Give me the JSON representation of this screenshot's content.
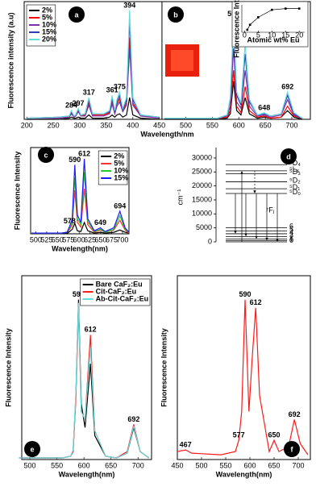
{
  "chart_data": [
    {
      "type": "line",
      "panel_labels": [
        "a",
        "b"
      ],
      "xlabel": "Wavelength/nm",
      "ylabel": "Fluorescence intensity (a.u)",
      "legend": "upper left",
      "x": [
        200,
        260,
        280,
        284,
        289,
        292,
        297,
        302,
        310,
        317,
        324,
        345,
        356,
        361,
        366,
        370,
        375,
        381,
        388,
        394,
        400,
        415,
        450,
        455,
        460,
        560,
        578,
        584,
        590,
        596,
        604,
        612,
        620,
        635,
        648,
        660,
        680,
        692,
        704,
        720
      ],
      "series": [
        {
          "name": "2%",
          "color": "#000000",
          "values": [
            0,
            0,
            1,
            2,
            1,
            1,
            2,
            1,
            1,
            4,
            1,
            1,
            2,
            4,
            2,
            4,
            5,
            2,
            4,
            20,
            4,
            1,
            0,
            null,
            0,
            0,
            1,
            5,
            35,
            8,
            4,
            20,
            5,
            1,
            2,
            1,
            2,
            8,
            2,
            0
          ]
        },
        {
          "name": "5%",
          "color": "#ff0000",
          "values": [
            1,
            2,
            2,
            6,
            2,
            3,
            8,
            3,
            4,
            15,
            4,
            4,
            6,
            17,
            6,
            14,
            19,
            8,
            15,
            75,
            15,
            3,
            2,
            null,
            1,
            1,
            2,
            8,
            45,
            12,
            6,
            30,
            8,
            2,
            3,
            1,
            2,
            12,
            3,
            1
          ]
        },
        {
          "name": "10%",
          "color": "#7b2fa8",
          "values": [
            1,
            1,
            2,
            5,
            2,
            3,
            7,
            3,
            3,
            13,
            3,
            3,
            5,
            14,
            5,
            12,
            16,
            7,
            13,
            65,
            13,
            3,
            1,
            null,
            1,
            1,
            3,
            12,
            65,
            16,
            10,
            45,
            12,
            3,
            4,
            2,
            4,
            18,
            4,
            1
          ]
        },
        {
          "name": "15%",
          "color": "#2b3fb3",
          "values": [
            1,
            2,
            3,
            7,
            3,
            4,
            9,
            4,
            5,
            18,
            5,
            5,
            7,
            20,
            7,
            16,
            22,
            9,
            18,
            90,
            18,
            4,
            2,
            null,
            1,
            1,
            4,
            18,
            85,
            22,
            13,
            60,
            16,
            4,
            5,
            3,
            5,
            22,
            5,
            1
          ]
        },
        {
          "name": "20%",
          "color": "#66dddd",
          "values": [
            1,
            2,
            3,
            8,
            3,
            4,
            10,
            4,
            5,
            20,
            5,
            5,
            8,
            22,
            8,
            18,
            25,
            10,
            20,
            100,
            20,
            4,
            2,
            null,
            1,
            1,
            4,
            20,
            92,
            25,
            15,
            70,
            18,
            4,
            6,
            3,
            5,
            25,
            6,
            1
          ]
        }
      ],
      "xlim": [
        195,
        735
      ],
      "xticks": [
        200,
        250,
        300,
        350,
        400,
        450,
        500,
        550,
        600,
        650,
        700
      ],
      "ylim": [
        0,
        108
      ],
      "peak_labels": [
        284,
        297,
        317,
        361,
        375,
        394,
        590,
        612,
        648,
        692
      ]
    },
    {
      "type": "line",
      "markers": true,
      "xlabel": "Atomic wt% Eu",
      "ylabel": "Fluorescence Intensity",
      "x": [
        1,
        2,
        5,
        10,
        15,
        20
      ],
      "series": [
        {
          "color": "#000000",
          "values": [
            10,
            30,
            60,
            90,
            95,
            95
          ]
        }
      ],
      "xlim": [
        -1,
        22
      ],
      "xticks": [
        0,
        5,
        10,
        15,
        20
      ],
      "ylim": [
        0,
        110
      ]
    },
    {
      "type": "line",
      "panel_labels": [
        "c"
      ],
      "xlabel": "Wavelength(nm)",
      "ylabel": "Fluorescence Intensity",
      "legend": "upper right",
      "x": [
        490,
        560,
        572,
        578,
        584,
        590,
        596,
        604,
        612,
        620,
        635,
        649,
        660,
        680,
        694,
        706,
        715
      ],
      "series": [
        {
          "name": "2%",
          "color": "#000000",
          "values": [
            1,
            1,
            1,
            3,
            6,
            14,
            4,
            3,
            15,
            4,
            1,
            2,
            1,
            2,
            5,
            2,
            1
          ]
        },
        {
          "name": "5%",
          "color": "#ff3030",
          "values": [
            1,
            1,
            2,
            6,
            12,
            58,
            15,
            9,
            60,
            12,
            2,
            5,
            2,
            5,
            18,
            5,
            1
          ]
        },
        {
          "name": "10%",
          "color": "#22cc22",
          "values": [
            1,
            1,
            2,
            8,
            16,
            75,
            20,
            12,
            82,
            16,
            3,
            6,
            2,
            6,
            24,
            6,
            2
          ]
        },
        {
          "name": "15%",
          "color": "#1a1aff",
          "values": [
            1,
            1,
            2,
            10,
            20,
            92,
            25,
            15,
            100,
            20,
            4,
            8,
            3,
            8,
            30,
            8,
            2
          ]
        }
      ],
      "xlim": [
        488,
        715
      ],
      "xticks": [
        500,
        525,
        550,
        575,
        600,
        625,
        650,
        675,
        700
      ],
      "ylim": [
        0,
        115
      ],
      "peak_labels": [
        578,
        590,
        612,
        649,
        694
      ]
    },
    {
      "type": "energy-levels",
      "panel_labels": [
        "d"
      ],
      "ylabel": "cm⁻¹",
      "group_label": "⁷Fⱼ",
      "ylim": [
        0,
        32000
      ],
      "yticks": [
        0,
        5000,
        10000,
        15000,
        20000,
        25000,
        30000
      ],
      "levels": [
        {
          "label": "⁵D₄",
          "value": 27600
        },
        {
          "label": "⁵L₆",
          "value": 25400
        },
        {
          "label": "⁵D₃",
          "value": 24400
        },
        {
          "label": "⁵D₂",
          "value": 21500
        },
        {
          "label": "⁵D₁",
          "value": 19000
        },
        {
          "label": "⁵D₀",
          "value": 17300
        },
        {
          "label": "6",
          "value": 5000
        },
        {
          "label": "5",
          "value": 3900
        },
        {
          "label": "4",
          "value": 2900
        },
        {
          "label": "3",
          "value": 1900
        },
        {
          "label": "2",
          "value": 1000
        },
        {
          "label": "1",
          "value": 400
        },
        {
          "label": "0",
          "value": 0
        }
      ]
    },
    {
      "type": "line",
      "panel_labels": [
        "e"
      ],
      "xlabel": "Wavelength(nm)",
      "ylabel": "Fluorescence Intensity",
      "legend": "upper right",
      "x": [
        480,
        560,
        575,
        580,
        585,
        590,
        595,
        602,
        612,
        620,
        640,
        660,
        680,
        692,
        704,
        720
      ],
      "series": [
        {
          "name": "Bare CaF₂:Eu",
          "color": "#000000",
          "values": [
            1,
            1,
            2,
            5,
            40,
            100,
            35,
            20,
            60,
            15,
            2,
            1,
            4,
            20,
            5,
            1
          ]
        },
        {
          "name": "Cit-CaF₂:Eu",
          "color": "#ff2020",
          "values": [
            1,
            1,
            2,
            5,
            38,
            95,
            30,
            25,
            78,
            18,
            2,
            1,
            5,
            22,
            5,
            1
          ]
        },
        {
          "name": "Ab-Cit-CaF₂:Eu",
          "color": "#66dddd",
          "values": [
            1,
            1,
            2,
            6,
            42,
            98,
            30,
            25,
            70,
            18,
            2,
            1,
            4,
            21,
            5,
            1
          ]
        }
      ],
      "xlim": [
        485,
        725
      ],
      "xticks": [
        500,
        550,
        600,
        650,
        700
      ],
      "ylim": [
        0,
        115
      ],
      "peak_labels": [
        590,
        612,
        692
      ]
    },
    {
      "type": "line",
      "panel_labels": [
        "f"
      ],
      "xlabel": "Wavelength(nm)",
      "ylabel": "Fluorescence Intensity",
      "x": [
        450,
        467,
        480,
        540,
        570,
        577,
        583,
        590,
        598,
        604,
        612,
        620,
        640,
        650,
        660,
        680,
        692,
        704,
        720
      ],
      "series": [
        {
          "color": "#ff1a1a",
          "values": [
            5,
            6,
            4,
            3,
            5,
            12,
            30,
            100,
            30,
            60,
            95,
            40,
            5,
            12,
            5,
            8,
            25,
            10,
            3
          ]
        }
      ],
      "xlim": [
        450,
        725
      ],
      "xticks": [
        450,
        500,
        550,
        600,
        650,
        700
      ],
      "ylim": [
        0,
        115
      ],
      "peak_labels": [
        467,
        577,
        590,
        612,
        650,
        692
      ]
    }
  ]
}
